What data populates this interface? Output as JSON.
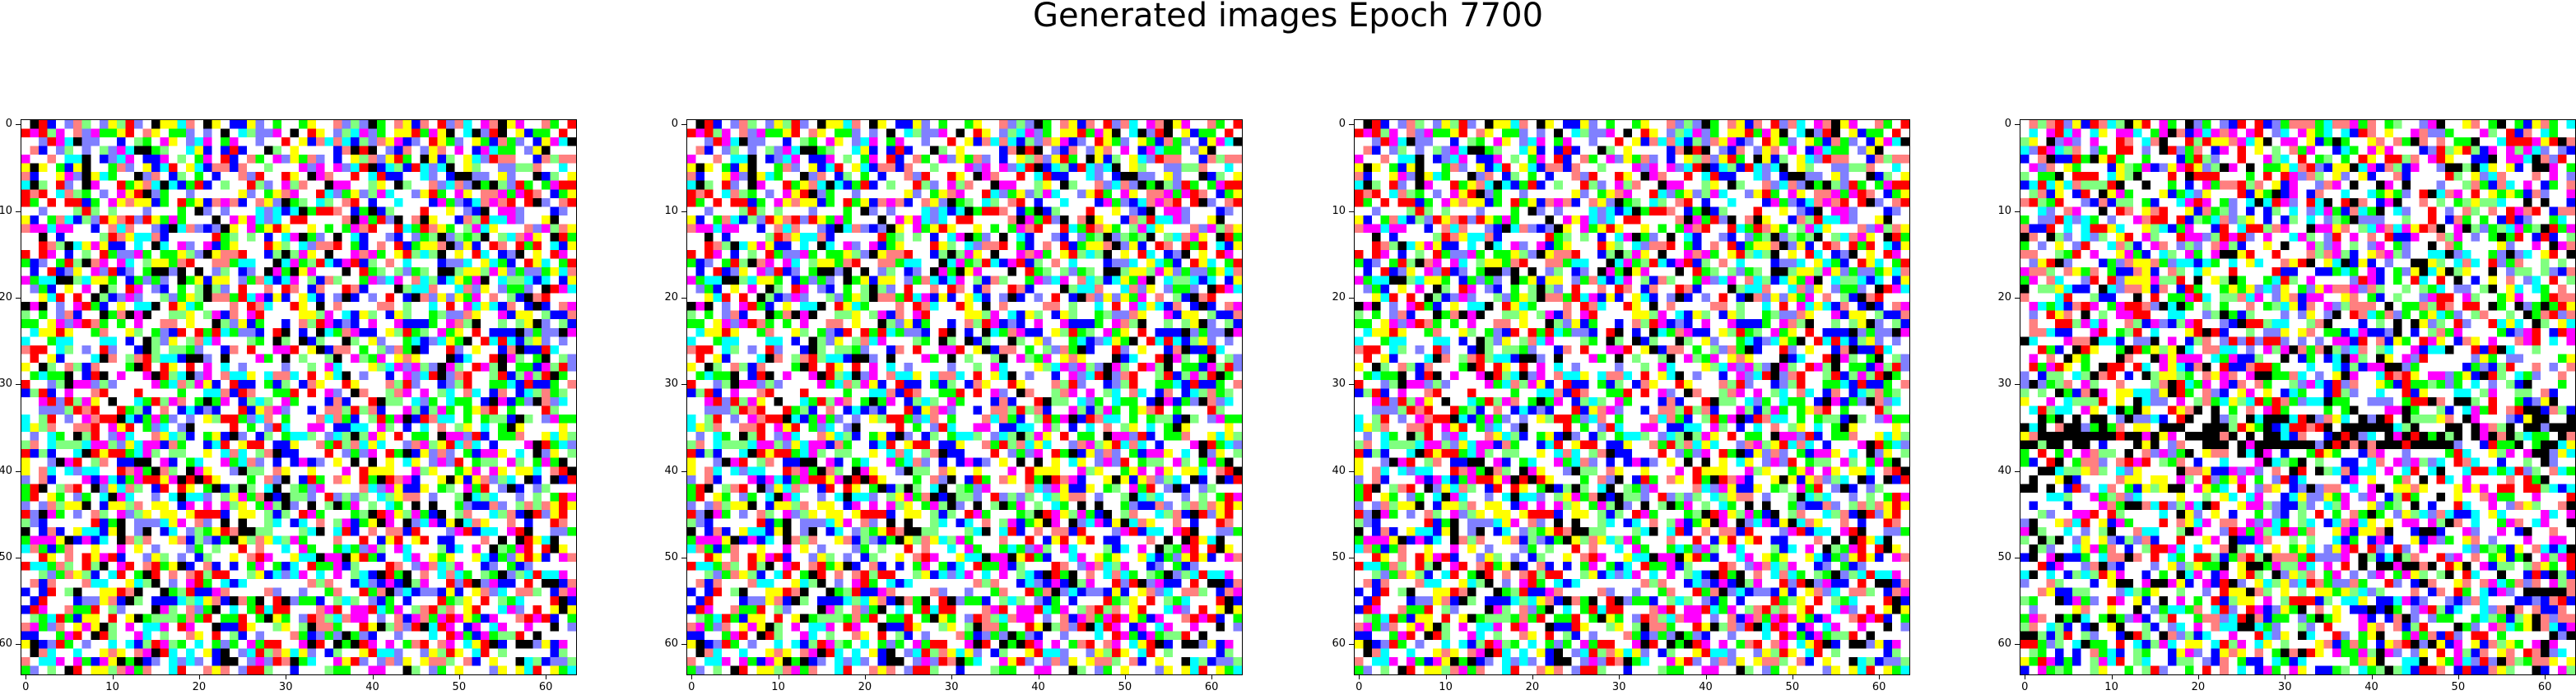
{
  "figure": {
    "title": "Generated images Epoch 7700"
  },
  "panels": [
    {
      "id": "panel-1",
      "variant": "a"
    },
    {
      "id": "panel-2",
      "variant": "a"
    },
    {
      "id": "panel-3",
      "variant": "a"
    },
    {
      "id": "panel-4",
      "variant": "b"
    }
  ],
  "axes": {
    "x_ticks": [
      "0",
      "10",
      "20",
      "30",
      "40",
      "50",
      "60"
    ],
    "y_ticks": [
      "0",
      "10",
      "20",
      "30",
      "40",
      "50",
      "60"
    ],
    "x_tick_values": [
      0,
      10,
      20,
      30,
      40,
      50,
      60
    ],
    "y_tick_values": [
      0,
      10,
      20,
      30,
      40,
      50,
      60
    ],
    "extent": [
      -0.5,
      63.5
    ]
  },
  "palette": {
    "colors": [
      "#ffffff",
      "#000000",
      "#ff0000",
      "#00ff00",
      "#0000ff",
      "#ffff00",
      "#00ffff",
      "#ff00ff",
      "#ff8080",
      "#80ff80",
      "#8080ff"
    ]
  }
}
